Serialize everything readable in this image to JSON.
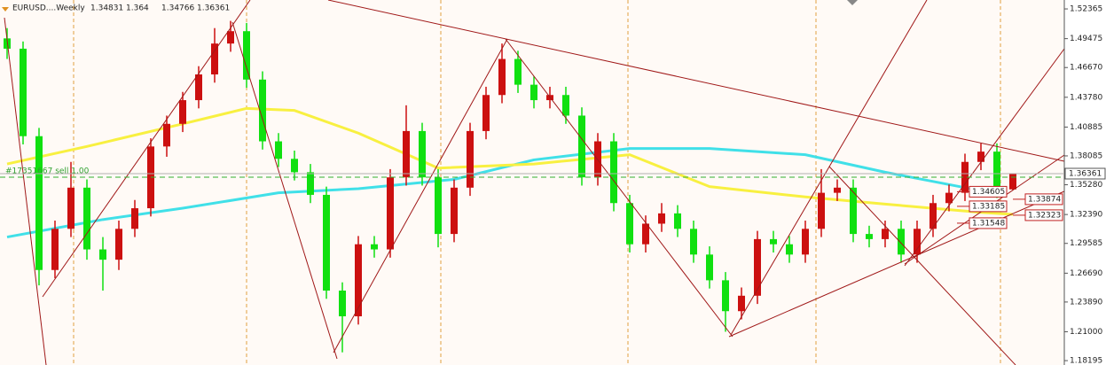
{
  "chart_data": {
    "type": "candlestick",
    "title": "EURUSD....Weekly",
    "up_color": "#cc1010",
    "down_color": "#10e010",
    "open": [
      1.495,
      1.485,
      1.4,
      1.27,
      1.31,
      1.35,
      1.29,
      1.28,
      1.31,
      1.33,
      1.39,
      1.412,
      1.435,
      1.46,
      1.49,
      1.502,
      1.455,
      1.395,
      1.378,
      1.365,
      1.343,
      1.25,
      1.225,
      1.295,
      1.29,
      1.36,
      1.405,
      1.36,
      1.305,
      1.35,
      1.405,
      1.44,
      1.475,
      1.45,
      1.435,
      1.44,
      1.42,
      1.36,
      1.395,
      1.335,
      1.295,
      1.315,
      1.325,
      1.31,
      1.285,
      1.26,
      1.23,
      1.245,
      1.3,
      1.295,
      1.285,
      1.31,
      1.345,
      1.35,
      1.305,
      1.3,
      1.31,
      1.285,
      1.31,
      1.335,
      1.345,
      1.375,
      1.385,
      1.34831
    ],
    "high": [
      1.505,
      1.492,
      1.408,
      1.318,
      1.375,
      1.358,
      1.302,
      1.318,
      1.338,
      1.398,
      1.42,
      1.443,
      1.468,
      1.505,
      1.512,
      1.51,
      1.463,
      1.403,
      1.386,
      1.373,
      1.351,
      1.258,
      1.303,
      1.303,
      1.368,
      1.43,
      1.413,
      1.368,
      1.358,
      1.413,
      1.448,
      1.49,
      1.483,
      1.458,
      1.448,
      1.448,
      1.428,
      1.403,
      1.403,
      1.343,
      1.323,
      1.335,
      1.333,
      1.318,
      1.293,
      1.268,
      1.253,
      1.308,
      1.308,
      1.303,
      1.318,
      1.368,
      1.358,
      1.358,
      1.313,
      1.318,
      1.318,
      1.318,
      1.343,
      1.353,
      1.383,
      1.393,
      1.393,
      1.364
    ],
    "low": [
      1.475,
      1.392,
      1.255,
      1.262,
      1.302,
      1.28,
      1.25,
      1.27,
      1.302,
      1.322,
      1.38,
      1.404,
      1.427,
      1.452,
      1.482,
      1.447,
      1.387,
      1.37,
      1.357,
      1.335,
      1.242,
      1.19,
      1.217,
      1.282,
      1.282,
      1.352,
      1.352,
      1.292,
      1.297,
      1.342,
      1.397,
      1.432,
      1.442,
      1.427,
      1.427,
      1.412,
      1.352,
      1.352,
      1.327,
      1.287,
      1.287,
      1.307,
      1.302,
      1.277,
      1.252,
      1.21,
      1.222,
      1.237,
      1.287,
      1.277,
      1.277,
      1.302,
      1.337,
      1.297,
      1.292,
      1.292,
      1.277,
      1.277,
      1.302,
      1.327,
      1.337,
      1.367,
      1.34,
      1.34766
    ],
    "close": [
      1.485,
      1.4,
      1.27,
      1.31,
      1.35,
      1.29,
      1.28,
      1.31,
      1.33,
      1.39,
      1.412,
      1.435,
      1.46,
      1.49,
      1.502,
      1.455,
      1.395,
      1.378,
      1.365,
      1.343,
      1.25,
      1.225,
      1.295,
      1.29,
      1.36,
      1.405,
      1.36,
      1.305,
      1.35,
      1.405,
      1.44,
      1.475,
      1.45,
      1.435,
      1.44,
      1.42,
      1.36,
      1.395,
      1.335,
      1.295,
      1.315,
      1.325,
      1.31,
      1.285,
      1.26,
      1.23,
      1.245,
      1.3,
      1.295,
      1.285,
      1.31,
      1.345,
      1.35,
      1.305,
      1.3,
      1.31,
      1.285,
      1.31,
      1.335,
      1.345,
      1.375,
      1.385,
      1.348,
      1.36361
    ],
    "overlays": [
      {
        "color": "#40e0e8",
        "x": [
          0,
          6,
          11,
          17,
          22,
          28,
          33,
          39,
          44,
          50,
          55,
          58,
          61
        ],
        "values": [
          1.302,
          1.319,
          1.33,
          1.345,
          1.349,
          1.358,
          1.377,
          1.388,
          1.388,
          1.382,
          1.365,
          1.356,
          1.347
        ]
      },
      {
        "color": "#f8f040",
        "x": [
          0,
          5,
          11,
          15,
          18,
          22,
          27,
          33,
          39,
          44,
          50,
          55,
          61,
          63
        ],
        "values": [
          1.373,
          1.39,
          1.412,
          1.427,
          1.425,
          1.403,
          1.369,
          1.373,
          1.382,
          1.351,
          1.341,
          1.334,
          1.326,
          1.324
        ]
      }
    ],
    "ylim": [
      1.1777,
      1.5323
    ],
    "yticks": [
      1.52365,
      1.49475,
      {
        "value": 1.4667,
        "label": "1.46670"
      },
      {
        "value": 1.4378,
        "label": "1.43780"
      },
      1.40885,
      1.38085,
      {
        "value": 1.3528,
        "label": "1.35280"
      },
      {
        "value": 1.3239,
        "label": "1.32390"
      },
      1.29585,
      {
        "value": 1.2669,
        "label": "1.26690"
      },
      {
        "value": 1.2389,
        "label": "1.23890"
      },
      {
        "value": 1.21,
        "label": "1.21000"
      },
      1.18195
    ],
    "grid": false,
    "order": {
      "text": "#17351667 sell 1.00",
      "price": 1.3602
    },
    "price_labels": [
      1.34605,
      1.33874,
      1.33185,
      1.32323,
      1.31548
    ]
  }
}
